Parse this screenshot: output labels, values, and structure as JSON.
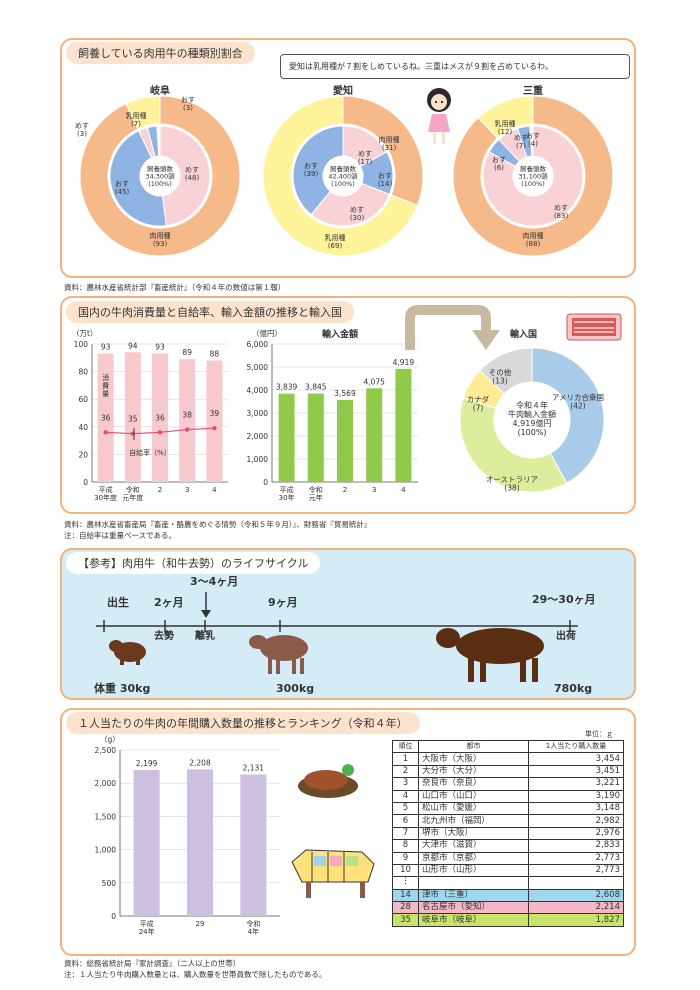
{
  "section1": {
    "title": "飼養している肉用牛の種類別割合",
    "bubble": "愛知は乳用種が７割をしめているね。三重はメスが９割を占めているわ。",
    "source": "資料：農林水産省統計部『畜産統計』（令和４年の数値は第１報）",
    "charts": [
      {
        "name": "岐阜",
        "center": [
          "飼養頭数",
          "34,300頭",
          "(100%)"
        ],
        "outer": [
          {
            "label": "肉用種",
            "value": "(93)"
          },
          {
            "label": "乳用種",
            "value": "(7)"
          }
        ],
        "inner": [
          {
            "label": "めす",
            "value": "(48)"
          },
          {
            "label": "おす",
            "value": "(45)"
          },
          {
            "label": "めす",
            "value": "(3)"
          },
          {
            "label": "おす",
            "value": "(3)"
          }
        ]
      },
      {
        "name": "愛知",
        "center": [
          "飼養頭数",
          "42,400頭",
          "(100%)"
        ],
        "outer": [
          {
            "label": "肉用種",
            "value": "(31)"
          },
          {
            "label": "乳用種",
            "value": "(69)"
          }
        ],
        "inner": [
          {
            "label": "めす",
            "value": "(17)"
          },
          {
            "label": "おす",
            "value": "(14)"
          },
          {
            "label": "めす",
            "value": "(30)"
          },
          {
            "label": "おす",
            "value": "(39)"
          }
        ]
      },
      {
        "name": "三重",
        "center": [
          "飼養頭数",
          "31,100頭",
          "(100%)"
        ],
        "outer": [
          {
            "label": "肉用種",
            "value": "(88)"
          },
          {
            "label": "乳用種",
            "value": "(12)"
          }
        ],
        "inner": [
          {
            "label": "めす",
            "value": "(83)"
          },
          {
            "label": "おす",
            "value": "(6)"
          },
          {
            "label": "めす",
            "value": "(7)"
          },
          {
            "label": "おす",
            "value": "(4)"
          }
        ]
      }
    ]
  },
  "section2": {
    "title": "国内の牛肉消費量と自給率、輸入金額の推移と輸入国",
    "source1": "資料：農林水産省畜産局『畜産・酪農をめぐる情勢（令和５年９月）』、財務省『貿易統計』",
    "source2": "注：自給率は重量ベースである。",
    "import_title": "輸入金額",
    "country_title": "輸入国",
    "consumption_label": "消\n費\n量",
    "selfsuff_label": "自給率（%）",
    "pie_center": [
      "令和４年",
      "牛肉輸入金額",
      "4,919億円",
      "(100%)"
    ]
  },
  "chart_data": [
    {
      "type": "bar",
      "title": "国内の牛肉消費量と自給率",
      "ylabel": "（万t）",
      "ylim": [
        0,
        100
      ],
      "yticks": [
        "0",
        "20",
        "40",
        "60",
        "80",
        "100"
      ],
      "categories": [
        "平成\n30年度",
        "令和\n元年度",
        "2",
        "3",
        "4"
      ],
      "series": [
        {
          "name": "消費量",
          "values": [
            93,
            94,
            93,
            89,
            88
          ]
        },
        {
          "name": "自給率（%）",
          "type": "line",
          "values": [
            36,
            35,
            36,
            38,
            39
          ]
        }
      ]
    },
    {
      "type": "bar",
      "title": "輸入金額",
      "ylabel": "（億円）",
      "ylim": [
        0,
        6000
      ],
      "yticks": [
        "0",
        "1,000",
        "2,000",
        "3,000",
        "4,000",
        "5,000",
        "6,000"
      ],
      "categories": [
        "平成\n30年",
        "令和\n元年",
        "2",
        "3",
        "4"
      ],
      "values": [
        3839,
        3845,
        3569,
        4075,
        4919
      ],
      "value_labels": [
        "3,839",
        "3,845",
        "3,569",
        "4,075",
        "4,919"
      ]
    },
    {
      "type": "pie",
      "title": "輸入国",
      "labels": [
        "アメリカ合衆国",
        "オーストラリア",
        "カナダ",
        "その他"
      ],
      "values": [
        42,
        38,
        7,
        13
      ],
      "colors": [
        "#a7cbe8",
        "#dcee9d",
        "#ffeb93",
        "#d9d9d9"
      ]
    },
    {
      "type": "bar",
      "title": "1人当たりの牛肉の年間購入数量",
      "ylabel": "（g）",
      "ylim": [
        0,
        2500
      ],
      "yticks": [
        "0",
        "500",
        "1,000",
        "1,500",
        "2,000",
        "2,500"
      ],
      "categories": [
        "平成\n24年",
        "29",
        "令和\n4年"
      ],
      "values": [
        2199,
        2208,
        2131
      ],
      "value_labels": [
        "2,199",
        "2,208",
        "2,131"
      ]
    }
  ],
  "section3": {
    "title": "【参考】肉用牛（和牛去勢）のライフサイクル",
    "stages_top": [
      "出生",
      "2ヶ月",
      "3～4ヶ月",
      "9ヶ月",
      "29～30ヶ月"
    ],
    "stages_bottom": [
      "去勢",
      "離乳",
      "出荷"
    ],
    "weights": [
      "体重 30kg",
      "300kg",
      "780kg"
    ]
  },
  "section4": {
    "title": "１人当たりの牛肉の年間購入数量の推移とランキング（令和４年）",
    "unit": "単位：ｇ",
    "source1": "資料：総務省統計局『家計調査』（二人以上の世帯）",
    "source2": "注：１人当たり牛肉購入数量とは、購入数量を世帯員数で除したものである。",
    "headers": [
      "順位",
      "都市",
      "1人当たり購入数量"
    ],
    "rows": [
      [
        "1",
        "大阪市（大阪）",
        "3,454"
      ],
      [
        "2",
        "大分市（大分）",
        "3,451"
      ],
      [
        "3",
        "奈良市（奈良）",
        "3,221"
      ],
      [
        "4",
        "山口市（山口）",
        "3,190"
      ],
      [
        "5",
        "松山市（愛媛）",
        "3,148"
      ],
      [
        "6",
        "北九州市（福岡）",
        "2,982"
      ],
      [
        "7",
        "堺市（大阪）",
        "2,976"
      ],
      [
        "8",
        "大津市（滋賀）",
        "2,833"
      ],
      [
        "9",
        "京都市（京都）",
        "2,773"
      ],
      [
        "10",
        "山形市（山形）",
        "2,773"
      ],
      [
        "︙",
        "",
        ""
      ],
      [
        "14",
        "津市（三重）",
        "2,608"
      ],
      [
        "28",
        "名古屋市（愛知）",
        "2,214"
      ],
      [
        "35",
        "岐阜市（岐阜）",
        "1,827"
      ]
    ]
  }
}
